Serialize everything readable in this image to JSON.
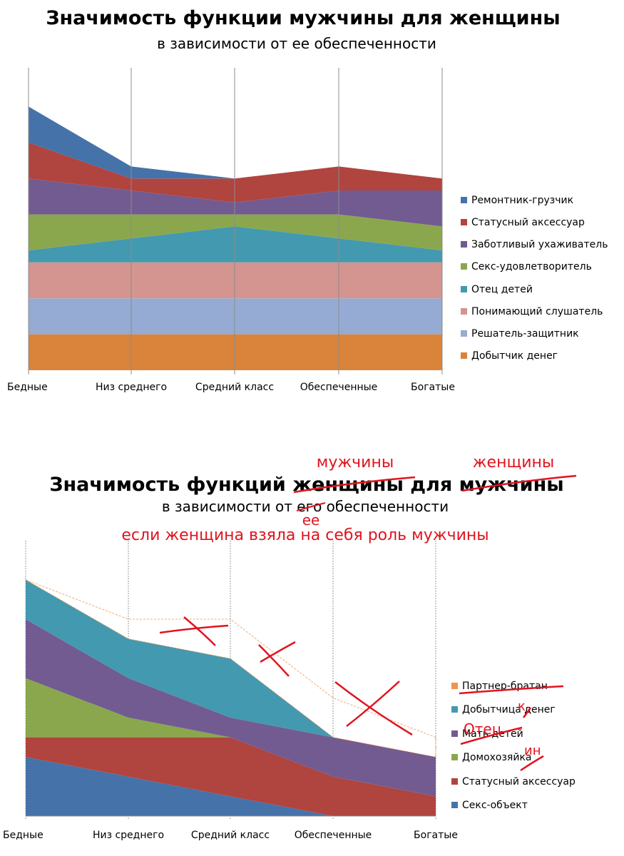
{
  "chart_data": [
    {
      "type": "area",
      "stacked": true,
      "title": "Значимость функции мужчины для женщины",
      "subtitle": "в зависимости от ее обеспеченности",
      "categories": [
        "Бедные",
        "Низ среднего",
        "Средний класс",
        "Обеспеченные",
        "Богатые"
      ],
      "legend_position": "right",
      "grid": "vertical",
      "series": [
        {
          "name": "Добытчик денег",
          "color": "#d9843a",
          "values": [
            3,
            3,
            3,
            3,
            3
          ]
        },
        {
          "name": "Решатель-защитник",
          "color": "#95abd3",
          "values": [
            3,
            3,
            3,
            3,
            3
          ]
        },
        {
          "name": "Понимающий слушатель",
          "color": "#d49490",
          "values": [
            3,
            3,
            3,
            3,
            3
          ]
        },
        {
          "name": "Отец детей",
          "color": "#4399b0",
          "values": [
            1,
            2,
            3,
            2,
            1
          ]
        },
        {
          "name": "Секс-удовлетворитель",
          "color": "#8aa74d",
          "values": [
            3,
            2,
            1,
            2,
            2
          ]
        },
        {
          "name": "Заботливый ухаживатель",
          "color": "#725b91",
          "values": [
            3,
            2,
            1,
            2,
            3
          ]
        },
        {
          "name": "Статусный аксессуар",
          "color": "#b0443f",
          "values": [
            3,
            1,
            2,
            2,
            1
          ]
        },
        {
          "name": "Ремонтник-грузчик",
          "color": "#4672aa",
          "values": [
            3,
            1,
            0,
            0,
            0
          ]
        }
      ]
    },
    {
      "type": "area",
      "stacked": true,
      "title": "Значимость функций женщины для мужчины",
      "subtitle": "в зависимости от его обеспеченности",
      "categories": [
        "Бедные",
        "Низ среднего",
        "Средний класс",
        "Обеспеченные",
        "Богатые"
      ],
      "legend_position": "right",
      "grid": "vertical-dotted",
      "series": [
        {
          "name": "Секс-объект",
          "color": "#4672aa",
          "values": [
            3,
            2,
            1,
            0,
            0
          ]
        },
        {
          "name": "Статусный аксессуар",
          "color": "#b0443f",
          "values": [
            1,
            2,
            3,
            2,
            1
          ]
        },
        {
          "name": "Домохозяйка",
          "color": "#8aa74d",
          "values": [
            3,
            1,
            0,
            0,
            0
          ]
        },
        {
          "name": "Мать детей",
          "color": "#725b91",
          "values": [
            3,
            2,
            1,
            2,
            2
          ]
        },
        {
          "name": "Добытчица денег",
          "color": "#4399b0",
          "values": [
            2,
            2,
            3,
            0,
            0
          ]
        },
        {
          "name": "Партнер-братан",
          "color": "#f0944e",
          "values": [
            0,
            1,
            2,
            2,
            1
          ]
        }
      ],
      "handwritten": {
        "title_replace_1": "мужчины",
        "title_replace_2": "женщины",
        "subtitle_replace": "ее",
        "note": "если женщина взяла на себя роль мужчины",
        "legend_otets": "Отец",
        "legend_k": "к",
        "legend_in": "ин"
      }
    }
  ]
}
